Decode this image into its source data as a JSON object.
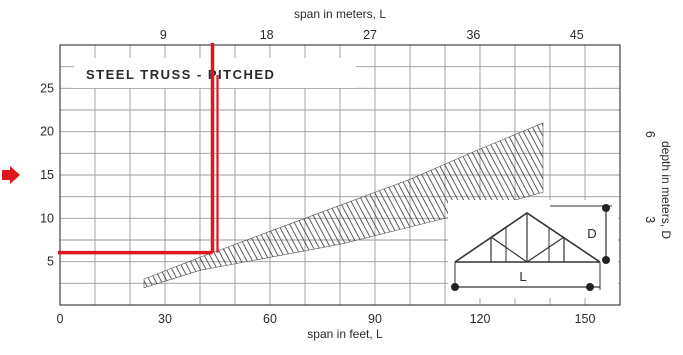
{
  "chart_data": {
    "type": "area",
    "title": "STEEL TRUSS - PITCHED",
    "xlabel": "span in feet, L",
    "x2label": "span in meters, L",
    "ylabel": "",
    "y2label": "depth in meters, D",
    "xlim": [
      0,
      160
    ],
    "ylim": [
      0,
      30
    ],
    "x_ticks": [
      {
        "value": 0,
        "label": "0"
      },
      {
        "value": 30,
        "label": "30"
      },
      {
        "value": 60,
        "label": "60"
      },
      {
        "value": 90,
        "label": "90"
      },
      {
        "value": 120,
        "label": "120"
      },
      {
        "value": 150,
        "label": "150"
      }
    ],
    "y_ticks": [
      {
        "value": 5,
        "label": "5"
      },
      {
        "value": 10,
        "label": "10"
      },
      {
        "value": 15,
        "label": "15"
      },
      {
        "value": 20,
        "label": "20"
      },
      {
        "value": 25,
        "label": "25"
      }
    ],
    "x2_ticks": [
      {
        "value": 9,
        "label": "9"
      },
      {
        "value": 18,
        "label": "18"
      },
      {
        "value": 27,
        "label": "27"
      },
      {
        "value": 36,
        "label": "36"
      },
      {
        "value": 45,
        "label": "45"
      }
    ],
    "y2_ticks": [
      {
        "value": 3,
        "label": "3"
      },
      {
        "value": 6,
        "label": "6"
      }
    ],
    "grid": true,
    "band": {
      "x": [
        24,
        40,
        60,
        80,
        100,
        120,
        138
      ],
      "lower": [
        2,
        4,
        5.5,
        7,
        9,
        11,
        13
      ],
      "upper": [
        3,
        5.5,
        8.5,
        11.5,
        14.5,
        18,
        21
      ]
    },
    "annotation": {
      "span_ft": 45,
      "depth_ft": 5,
      "arrow_at_depth": 15,
      "color": "#e0161e"
    },
    "diagram_labels": {
      "depth": "D",
      "span": "L"
    }
  }
}
